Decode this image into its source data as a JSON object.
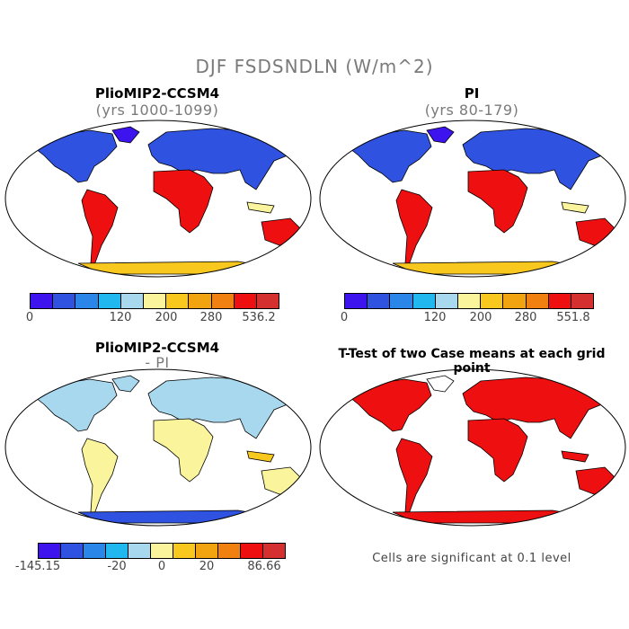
{
  "title": "DJF FSDSNDLN (W/m^2)",
  "panels": [
    {
      "title": "PlioMIP2-CCSM4",
      "subtitle": "(yrs 1000-1099)"
    },
    {
      "title": "PI",
      "subtitle": "(yrs 80-179)"
    },
    {
      "title": "PlioMIP2-CCSM4",
      "subtitle": "- PI"
    },
    {
      "title": "T-Test of two Case means at each grid point",
      "subtitle": ""
    }
  ],
  "colorbars": {
    "abs": {
      "colors": [
        "#3d14ee",
        "#2f52e0",
        "#2a86e8",
        "#21b8f0",
        "#a8d8ee",
        "#faf59c",
        "#f8c81e",
        "#f1a310",
        "#f08010",
        "#ee1010",
        "#d43030"
      ],
      "ticks_a": [
        "0",
        "120",
        "200",
        "280",
        "536.2"
      ],
      "ticks_b": [
        "0",
        "120",
        "200",
        "280",
        "551.8"
      ]
    },
    "diff": {
      "colors": [
        "#3d14ee",
        "#2f52e0",
        "#2a86e8",
        "#21b8f0",
        "#a8d8ee",
        "#faf59c",
        "#f8c81e",
        "#f1a310",
        "#f08010",
        "#ee1010",
        "#d43030"
      ],
      "ticks": [
        "-145.15",
        "-20",
        "0",
        "20",
        "86.66"
      ]
    }
  },
  "significance_note": "Cells are significant at 0.1 level",
  "significance_color": "#ee1010",
  "land_color": "#ffffff"
}
